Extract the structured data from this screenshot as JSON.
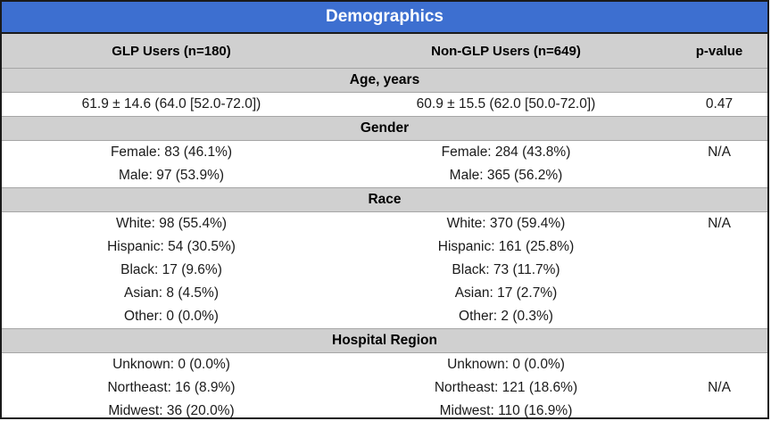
{
  "title": "Demographics",
  "header": {
    "col1": "GLP Users (n=180)",
    "col2": "Non-GLP Users (n=649)",
    "col3": "p-value"
  },
  "sections": [
    {
      "label": "Age, years",
      "rows": [
        {
          "glp": "61.9 ± 14.6 (64.0 [52.0-72.0])",
          "non_glp": "60.9 ± 15.5 (62.0 [50.0-72.0])",
          "p": "0.47"
        }
      ]
    },
    {
      "label": "Gender",
      "rows": [
        {
          "glp": "Female: 83 (46.1%)",
          "non_glp": "Female: 284 (43.8%)",
          "p": "N/A"
        },
        {
          "glp": "Male: 97 (53.9%)",
          "non_glp": "Male: 365 (56.2%)",
          "p": ""
        }
      ]
    },
    {
      "label": "Race",
      "rows": [
        {
          "glp": "White: 98 (55.4%)",
          "non_glp": "White: 370 (59.4%)",
          "p": "N/A"
        },
        {
          "glp": "Hispanic: 54 (30.5%)",
          "non_glp": "Hispanic: 161 (25.8%)",
          "p": ""
        },
        {
          "glp": "Black: 17 (9.6%)",
          "non_glp": "Black: 73 (11.7%)",
          "p": ""
        },
        {
          "glp": "Asian: 8 (4.5%)",
          "non_glp": "Asian: 17 (2.7%)",
          "p": ""
        },
        {
          "glp": "Other: 0 (0.0%)",
          "non_glp": "Other: 2 (0.3%)",
          "p": ""
        }
      ]
    },
    {
      "label": "Hospital Region",
      "rows": [
        {
          "glp": "Unknown: 0 (0.0%)",
          "non_glp": "Unknown: 0 (0.0%)",
          "p": ""
        },
        {
          "glp": "Northeast: 16 (8.9%)",
          "non_glp": "Northeast: 121 (18.6%)",
          "p": "N/A"
        },
        {
          "glp": "Midwest: 36 (20.0%)",
          "non_glp": "Midwest: 110 (16.9%)",
          "p": ""
        }
      ]
    }
  ],
  "colors": {
    "title_bg": "#3d6fd0",
    "header_bg": "#d0d0d0",
    "border": "#1a1a1a"
  }
}
